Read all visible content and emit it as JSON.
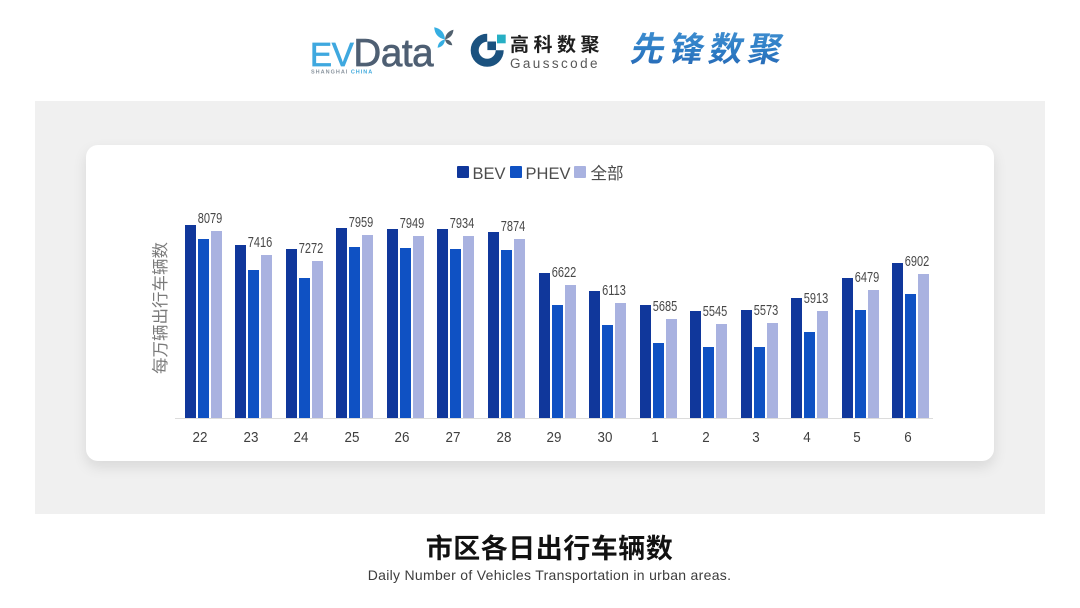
{
  "header": {
    "evdata_logo": {
      "ev": "EV",
      "data": "Data",
      "tagline_left": "SHANGHAI",
      "tagline_right": "CHINA",
      "ev_color": "#3BA9E1",
      "data_color": "#4E5F73"
    },
    "gausscode_logo": {
      "name_cn": "高科数聚",
      "name_en": "Gausscode",
      "mark_color": "#1B527F",
      "accent_color": "#27AFC4"
    },
    "pioneer_logo": {
      "text": "先锋数聚",
      "color": "#2E7EC6"
    }
  },
  "chart_data": {
    "type": "bar",
    "title": "市区各日出行车辆数",
    "subtitle": "Daily Number of Vehicles Transportation in urban areas.",
    "ylabel": "每万辆出行车辆数",
    "xlabel": "",
    "categories": [
      "22",
      "23",
      "24",
      "25",
      "26",
      "27",
      "28",
      "29",
      "30",
      "1",
      "2",
      "3",
      "4",
      "5",
      "6"
    ],
    "series": [
      {
        "name": "BEV",
        "color": "#10379B",
        "values": [
          8250,
          7690,
          7590,
          8160,
          8140,
          8130,
          8040,
          6940,
          6450,
          6060,
          5910,
          5930,
          6250,
          6800,
          7220
        ]
      },
      {
        "name": "PHEV",
        "color": "#0F51C3",
        "values": [
          7870,
          7010,
          6810,
          7650,
          7630,
          7600,
          7570,
          6070,
          5520,
          5040,
          4940,
          4920,
          5330,
          5920,
          6370
        ]
      },
      {
        "name": "全部",
        "color": "#A9B2E0",
        "show_labels": true,
        "values": [
          8079,
          7416,
          7272,
          7959,
          7949,
          7934,
          7874,
          6622,
          6113,
          5685,
          5545,
          5573,
          5913,
          6479,
          6902
        ]
      }
    ],
    "ylim": [
      3000,
      9000
    ],
    "grid": false,
    "legend_position": "top-center",
    "value_label_series": "全部"
  }
}
